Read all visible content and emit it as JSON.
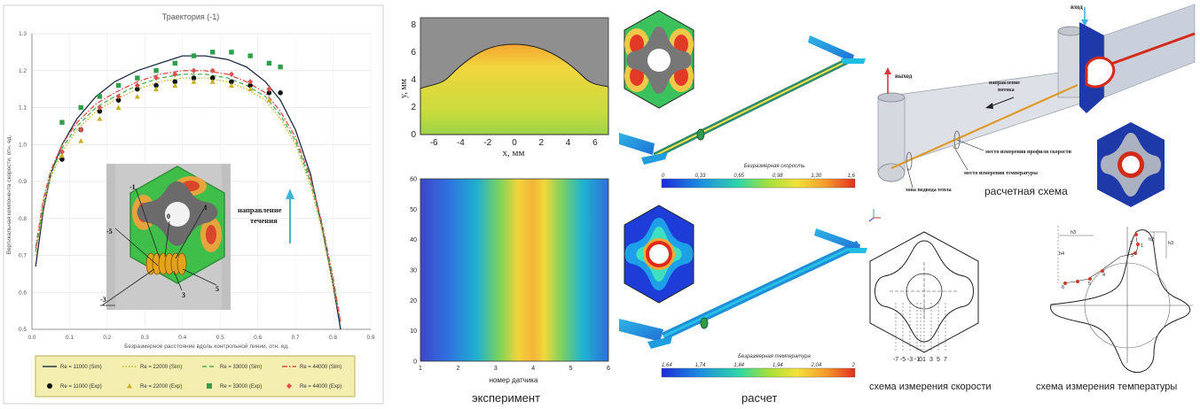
{
  "left_chart": {
    "title": "Траектория (-1)",
    "xlabel": "Безразмерное расстояние вдоль контрольной линии, отн. ед.",
    "ylabel": "Вертикальная компонента скорости, отн. ед.",
    "flow_label_line1": "направление",
    "flow_label_line2": "течения",
    "probe_labels": [
      "-1",
      "0",
      "1",
      "-5",
      "5",
      "-3",
      "3"
    ],
    "legend": {
      "sim": [
        "Re = 11000 (Sim)",
        "Re = 22000 (Sim)",
        "Re = 33000 (Sim)",
        "Re = 44000 (Sim)"
      ],
      "exp": [
        "Re = 11000 (Exp)",
        "Re = 22000 (Exp)",
        "Re = 33000 (Exp)",
        "Re = 44000 (Exp)"
      ]
    }
  },
  "chart_data": [
    {
      "type": "line",
      "title": "Траектория (-1)",
      "xlabel": "Безразмерное расстояние вдоль контрольной линии, отн. ед.",
      "ylabel": "Вертикальная компонента скорости, отн. ед.",
      "xlim": [
        0,
        0.9
      ],
      "ylim": [
        0.5,
        1.3
      ],
      "xticks": [
        0,
        0.1,
        0.2,
        0.3,
        0.4,
        0.5,
        0.6,
        0.7,
        0.8,
        0.9
      ],
      "yticks": [
        0.5,
        0.6,
        0.7,
        0.8,
        0.9,
        1.0,
        1.1,
        1.2,
        1.3
      ],
      "xtick_labels": [
        "0.0",
        "0.1",
        "0.2",
        "0.3",
        "0.4",
        "0.5",
        "0.6",
        "0.7",
        "0.8",
        "0.9"
      ],
      "ytick_labels": [
        "0.5",
        "0.6",
        "0.7",
        "0.8",
        "0.9",
        "1.0",
        "1.1",
        "1.2",
        "1.3"
      ],
      "legend_position": "bottom",
      "series": [
        {
          "name": "Re = 11000 (Sim)",
          "style": "solid",
          "color": "#1f2a44",
          "x": [
            0.01,
            0.03,
            0.05,
            0.08,
            0.12,
            0.17,
            0.22,
            0.28,
            0.34,
            0.4,
            0.46,
            0.52,
            0.57,
            0.62,
            0.66,
            0.7,
            0.74,
            0.77,
            0.8,
            0.82
          ],
          "y": [
            0.67,
            0.82,
            0.92,
            1.0,
            1.07,
            1.13,
            1.17,
            1.2,
            1.22,
            1.24,
            1.24,
            1.23,
            1.21,
            1.17,
            1.12,
            1.04,
            0.92,
            0.78,
            0.62,
            0.5
          ]
        },
        {
          "name": "Re = 22000 (Sim)",
          "style": "dotted",
          "color": "#c9b028",
          "x": [
            0.01,
            0.03,
            0.05,
            0.08,
            0.12,
            0.17,
            0.22,
            0.28,
            0.34,
            0.4,
            0.46,
            0.52,
            0.57,
            0.62,
            0.66,
            0.7,
            0.74,
            0.77,
            0.8,
            0.82
          ],
          "y": [
            0.7,
            0.83,
            0.91,
            0.98,
            1.04,
            1.09,
            1.12,
            1.15,
            1.17,
            1.18,
            1.18,
            1.17,
            1.15,
            1.12,
            1.07,
            1.0,
            0.89,
            0.77,
            0.62,
            0.52
          ]
        },
        {
          "name": "Re = 33000 (Sim)",
          "style": "dashed",
          "color": "#4caf50",
          "x": [
            0.01,
            0.03,
            0.05,
            0.08,
            0.12,
            0.17,
            0.22,
            0.28,
            0.34,
            0.4,
            0.46,
            0.52,
            0.57,
            0.62,
            0.66,
            0.7,
            0.74,
            0.77,
            0.8,
            0.82
          ],
          "y": [
            0.71,
            0.84,
            0.92,
            0.99,
            1.05,
            1.1,
            1.13,
            1.16,
            1.18,
            1.19,
            1.19,
            1.18,
            1.16,
            1.13,
            1.08,
            1.01,
            0.9,
            0.78,
            0.63,
            0.52
          ]
        },
        {
          "name": "Re = 44000 (Sim)",
          "style": "dashdot",
          "color": "#d9534f",
          "x": [
            0.01,
            0.03,
            0.05,
            0.08,
            0.12,
            0.17,
            0.22,
            0.28,
            0.34,
            0.4,
            0.46,
            0.52,
            0.57,
            0.62,
            0.66,
            0.7,
            0.74,
            0.77,
            0.8,
            0.82
          ],
          "y": [
            0.72,
            0.85,
            0.93,
            1.0,
            1.06,
            1.11,
            1.14,
            1.17,
            1.19,
            1.2,
            1.2,
            1.19,
            1.17,
            1.14,
            1.09,
            1.02,
            0.91,
            0.79,
            0.64,
            0.52
          ]
        },
        {
          "name": "Re = 11000 (Exp)",
          "marker": "circle",
          "color": "#111111",
          "x": [
            0.08,
            0.13,
            0.18,
            0.23,
            0.28,
            0.33,
            0.38,
            0.43,
            0.48,
            0.53,
            0.58,
            0.63,
            0.66
          ],
          "y": [
            0.96,
            1.04,
            1.09,
            1.12,
            1.15,
            1.16,
            1.17,
            1.18,
            1.18,
            1.17,
            1.16,
            1.14,
            1.14
          ]
        },
        {
          "name": "Re = 22000 (Exp)",
          "marker": "triangle",
          "color": "#c9b028",
          "x": [
            0.08,
            0.13,
            0.18,
            0.23,
            0.28,
            0.33,
            0.38,
            0.43,
            0.48,
            0.53,
            0.58,
            0.63
          ],
          "y": [
            0.97,
            1.01,
            1.07,
            1.1,
            1.13,
            1.15,
            1.16,
            1.17,
            1.17,
            1.16,
            1.15,
            1.12
          ]
        },
        {
          "name": "Re = 33000 (Exp)",
          "marker": "square",
          "color": "#2e9e4a",
          "x": [
            0.08,
            0.13,
            0.18,
            0.23,
            0.28,
            0.33,
            0.38,
            0.43,
            0.48,
            0.53,
            0.58,
            0.63,
            0.66
          ],
          "y": [
            1.06,
            1.1,
            1.13,
            1.16,
            1.18,
            1.2,
            1.22,
            1.24,
            1.25,
            1.25,
            1.24,
            1.22,
            1.21
          ]
        },
        {
          "name": "Re = 44000 (Exp)",
          "marker": "diamond",
          "color": "#d9534f",
          "x": [
            0.08,
            0.13,
            0.18,
            0.23,
            0.28,
            0.33,
            0.38,
            0.43,
            0.48,
            0.53,
            0.58,
            0.63
          ],
          "y": [
            0.98,
            1.04,
            1.1,
            1.13,
            1.16,
            1.18,
            1.19,
            1.2,
            1.2,
            1.19,
            1.17,
            1.15
          ]
        }
      ]
    },
    {
      "type": "heatmap",
      "xlabel": "x, мм",
      "ylabel": "y, мм",
      "xlim": [
        -7,
        7
      ],
      "ylim": [
        0,
        8.5
      ],
      "xticks": [
        -6,
        -4,
        -2,
        0,
        2,
        4,
        6
      ],
      "yticks": [
        0,
        2,
        4,
        6,
        8
      ]
    },
    {
      "type": "heatmap",
      "xlabel": "номер датчика",
      "xlim": [
        1,
        6
      ],
      "ylim": [
        0,
        60
      ],
      "xticks": [
        1,
        2,
        3,
        4,
        5,
        6
      ],
      "yticks": [
        0,
        10,
        20,
        30,
        40,
        50,
        60
      ]
    }
  ],
  "experiment": {
    "caption": "эксперимент"
  },
  "calculation": {
    "caption": "расчет",
    "velocity_scale": {
      "title": "Безразмерная скорость",
      "ticks": [
        "0",
        "0,33",
        "0,65",
        "0,98",
        "1,30",
        "1,6"
      ]
    },
    "temperature_scale": {
      "title": "Безразмерная температура",
      "ticks": [
        "1,64",
        "1,74",
        "1,84",
        "1,94",
        "2,04",
        "2"
      ]
    }
  },
  "scheme": {
    "caption": "расчетная схема",
    "labels": {
      "inlet": "вход",
      "outlet": "выход",
      "flow_dir_line1": "направление",
      "flow_dir_line2": "потока",
      "velocity_meas": "место измерения профиля скорости",
      "temp_meas": "место измерения температуры",
      "heat_zone": "зона подвода тепла"
    },
    "velocity_scheme_caption": "схема измерения скорости",
    "velocity_scheme_ticks": [
      "-7",
      "-5",
      "-3",
      "-1",
      "0",
      "1",
      "3",
      "5",
      "7"
    ],
    "temperature_scheme_caption": "схема измерения температуры",
    "temperature_scheme_labels": [
      "h3",
      "h2",
      "h3",
      "h4",
      "1",
      "2",
      "3",
      "4",
      "5",
      "6"
    ]
  },
  "colors": {
    "sim_11000": "#1f2a44",
    "sim_22000": "#c9b028",
    "sim_33000": "#4caf50",
    "sim_44000": "#d9534f",
    "legend_bg": "#f4eeb0",
    "flow_arrow": "#3fb4d6",
    "outlet_arrow": "#d93a3a"
  }
}
